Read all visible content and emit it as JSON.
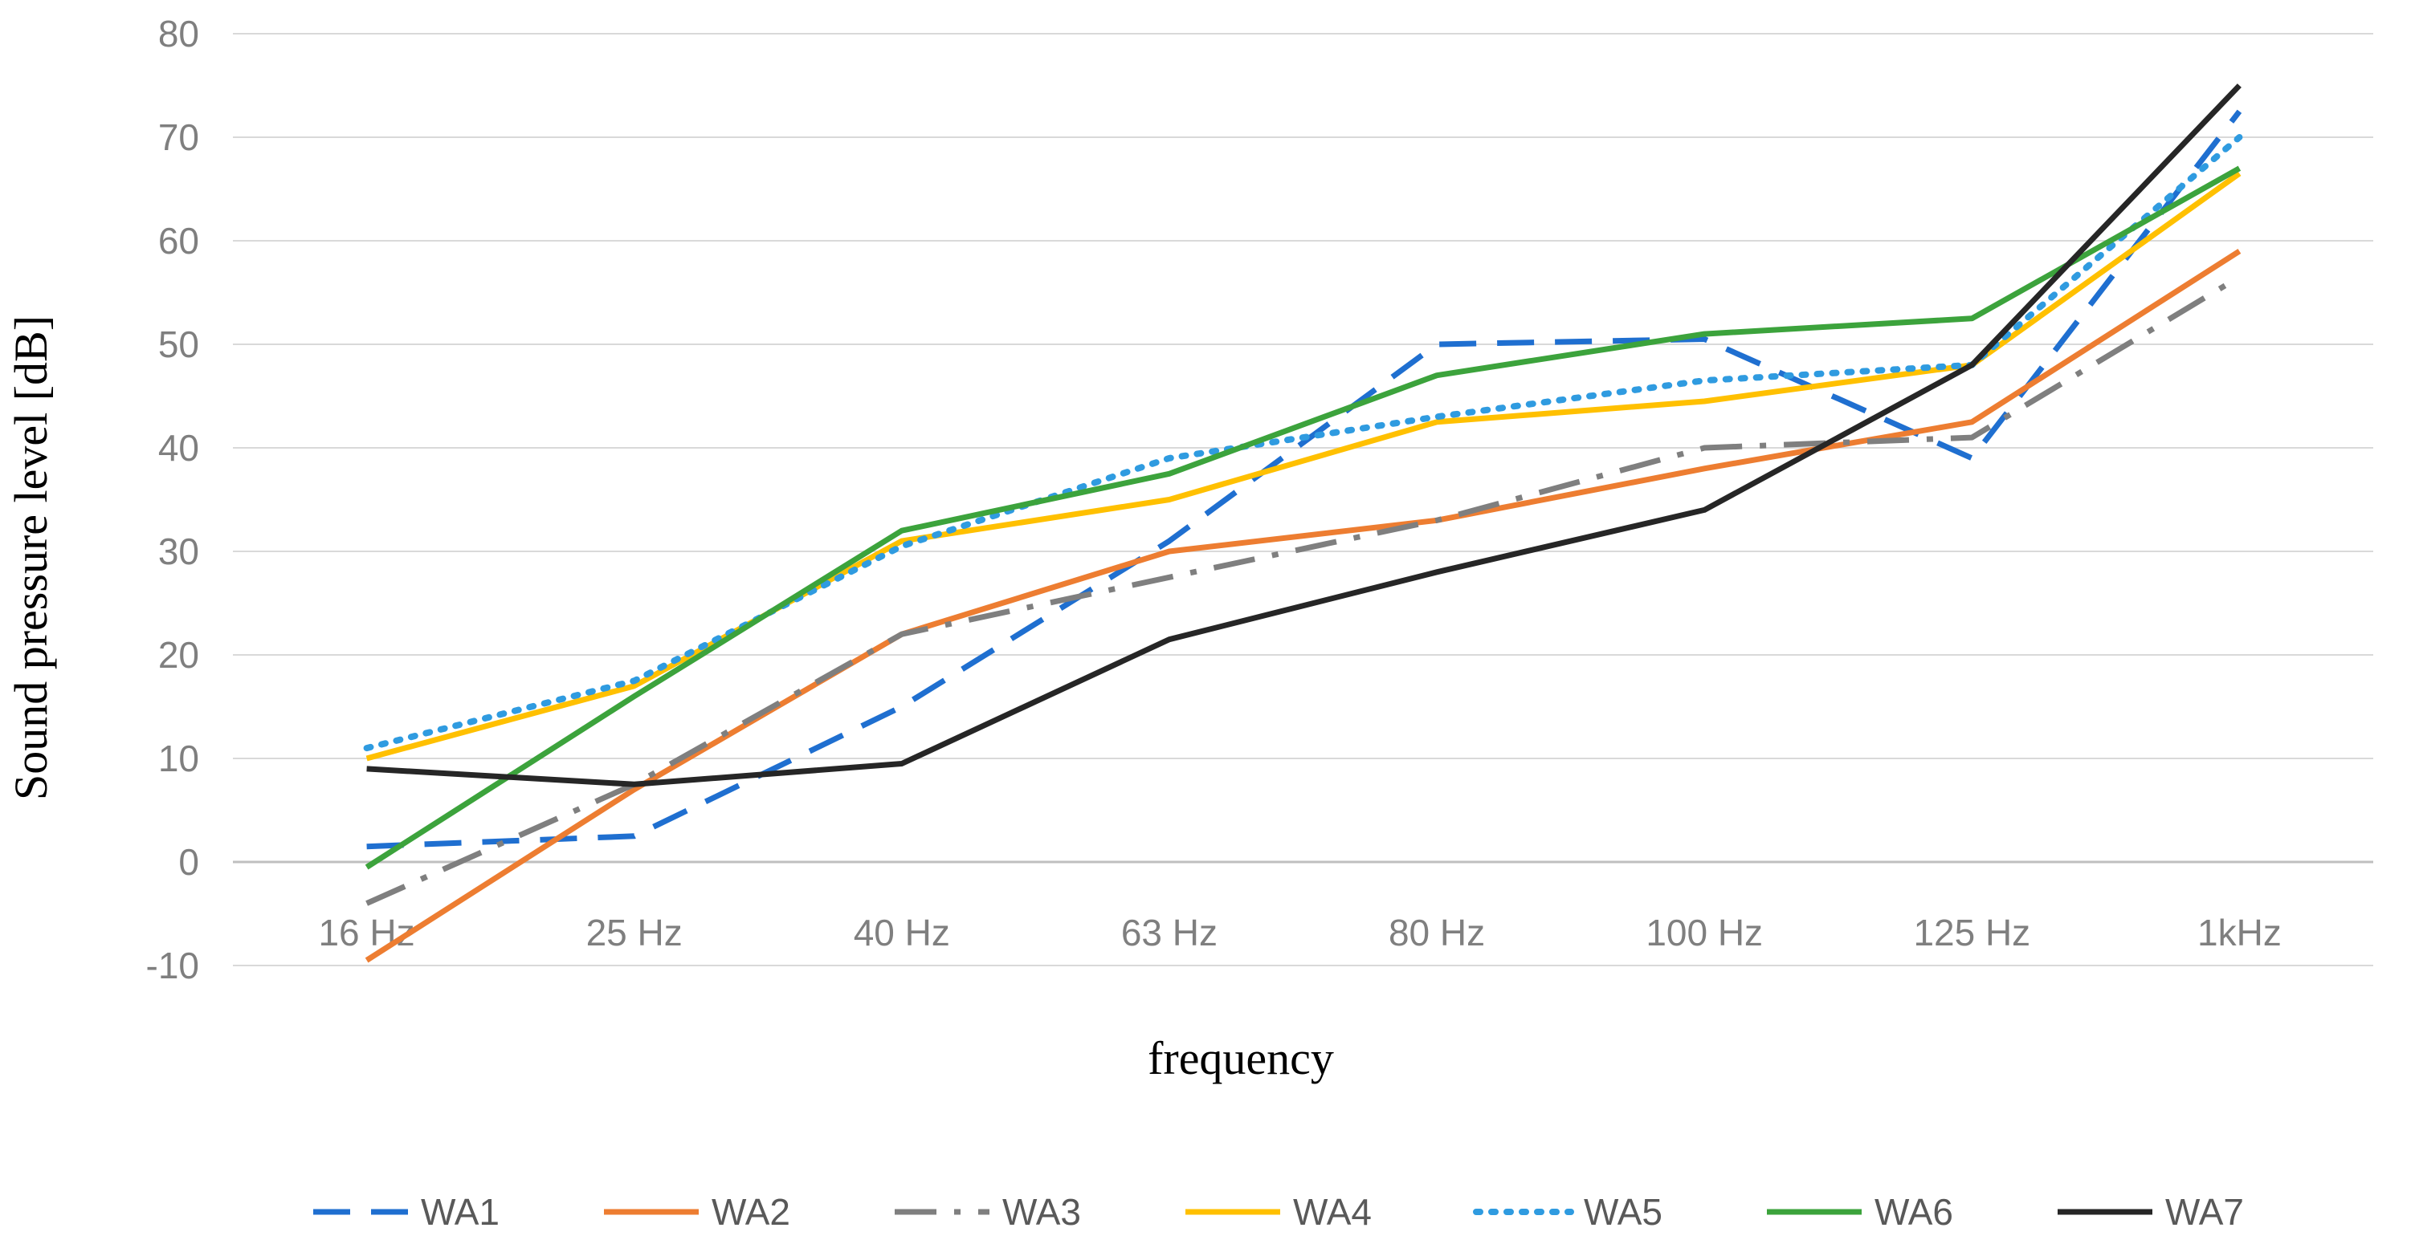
{
  "chart_data": {
    "type": "line",
    "title": "",
    "xlabel": "frequency",
    "ylabel": "Sound pressure level [dB]",
    "categories": [
      "16 Hz",
      "25 Hz",
      "40 Hz",
      "63 Hz",
      "80 Hz",
      "100 Hz",
      "125 Hz",
      "1kHz"
    ],
    "ylim": [
      -10,
      80
    ],
    "yticks": [
      -10,
      0,
      10,
      20,
      30,
      40,
      50,
      60,
      70,
      80
    ],
    "y_tick_labels": [
      "-10",
      "0",
      "10",
      "20",
      "30",
      "40",
      "50",
      "60",
      "70",
      "80"
    ],
    "grid": true,
    "legend_position": "bottom",
    "series": [
      {
        "name": "WA1",
        "values": [
          1.5,
          2.5,
          15,
          31,
          50,
          50.5,
          39,
          72.5
        ],
        "color": "#1f6fd0",
        "dash": "long-dash"
      },
      {
        "name": "WA2",
        "values": [
          -9.5,
          7,
          22,
          30,
          33,
          38,
          42.5,
          59
        ],
        "color": "#ed7d31",
        "dash": "solid"
      },
      {
        "name": "WA3",
        "values": [
          -4,
          7.5,
          22,
          27.5,
          33,
          40,
          41,
          56.5
        ],
        "color": "#7f7f7f",
        "dash": "long-dash-dot"
      },
      {
        "name": "WA4",
        "values": [
          10,
          17,
          31,
          35,
          42.5,
          44.5,
          48,
          66.5
        ],
        "color": "#ffc000",
        "dash": "solid"
      },
      {
        "name": "WA5",
        "values": [
          11,
          17.5,
          30.5,
          39,
          43,
          46.5,
          48,
          70
        ],
        "color": "#2f9be0",
        "dash": "dot"
      },
      {
        "name": "WA6",
        "values": [
          -0.5,
          16,
          32,
          37.5,
          47,
          51,
          52.5,
          67
        ],
        "color": "#3ca33c",
        "dash": "solid"
      },
      {
        "name": "WA7",
        "values": [
          9,
          7.5,
          9.5,
          21.5,
          28,
          34,
          48,
          75
        ],
        "color": "#262626",
        "dash": "solid"
      }
    ]
  }
}
